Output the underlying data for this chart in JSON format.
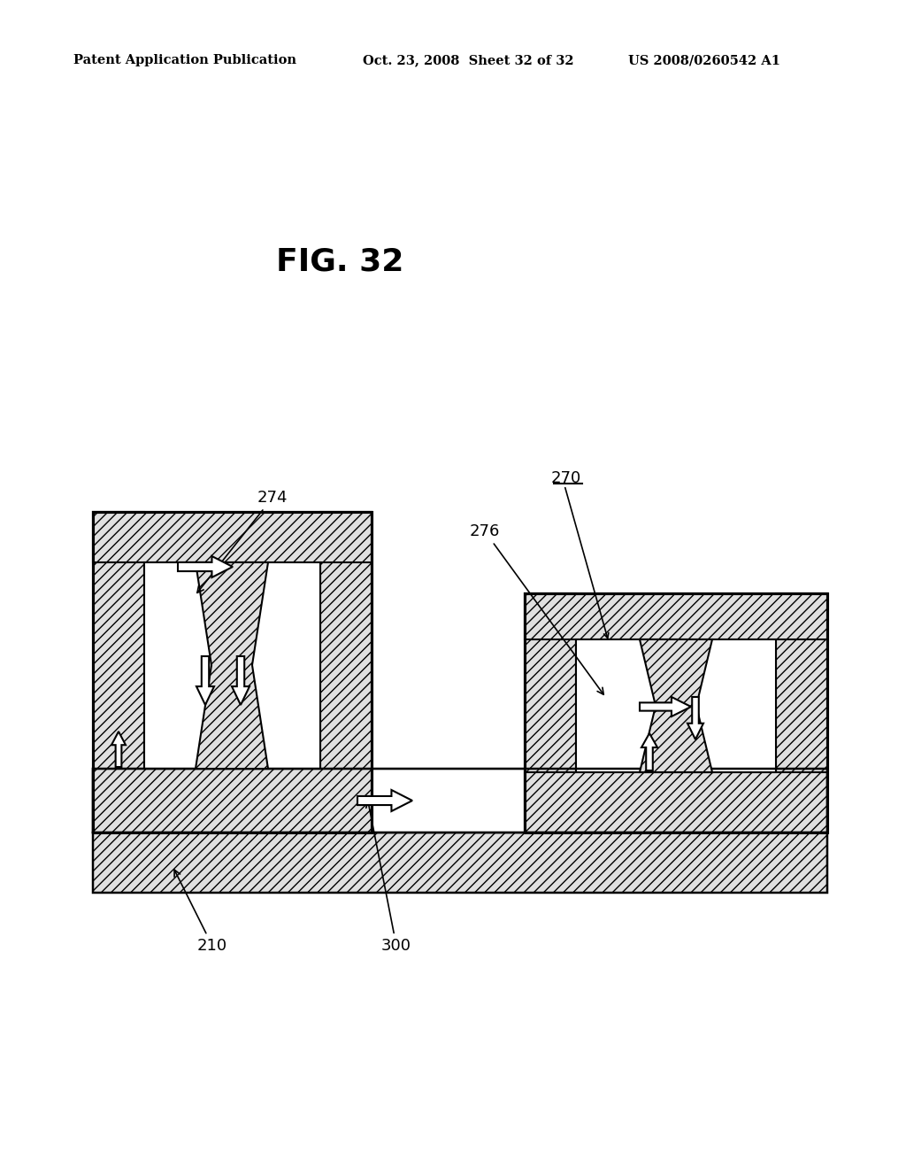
{
  "bg_color": "#ffffff",
  "header_left": "Patent Application Publication",
  "header_mid": "Oct. 23, 2008  Sheet 32 of 32",
  "header_right": "US 2008/0260542 A1",
  "fig_label": "FIG. 32",
  "hatch": "///",
  "hatch_fc": "#e0e0e0",
  "lw": 1.5
}
